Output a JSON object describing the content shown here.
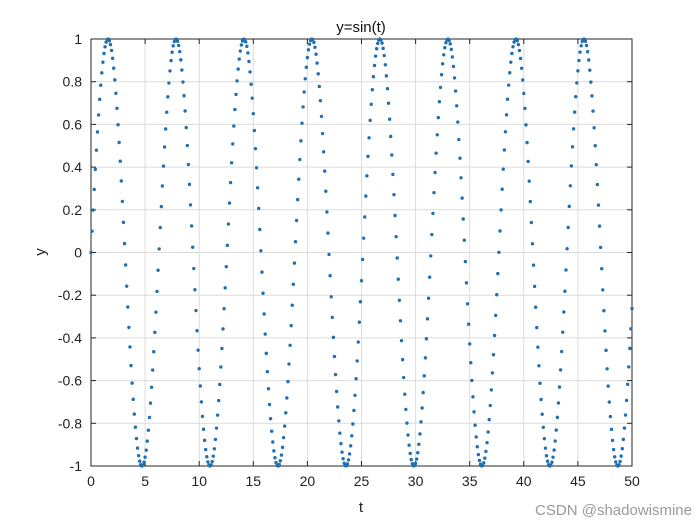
{
  "chart_data": {
    "type": "scatter",
    "title": "y=sin(t)",
    "xlabel": "t",
    "ylabel": "y",
    "xlim": [
      0,
      50
    ],
    "ylim": [
      -1,
      1
    ],
    "xticks": [
      0,
      5,
      10,
      15,
      20,
      25,
      30,
      35,
      40,
      45,
      50
    ],
    "yticks": [
      -1,
      -0.8,
      -0.6,
      -0.4,
      -0.2,
      0,
      0.2,
      0.4,
      0.6,
      0.8,
      1
    ],
    "xtick_labels": [
      "0",
      "5",
      "10",
      "15",
      "20",
      "25",
      "30",
      "35",
      "40",
      "45",
      "50"
    ],
    "ytick_labels": [
      "-1",
      "-0.8",
      "-0.6",
      "-0.4",
      "-0.2",
      "0",
      "0.2",
      "0.4",
      "0.6",
      "0.8",
      "1"
    ],
    "grid": true,
    "series": [
      {
        "function": "sin(t)",
        "t_start": 0,
        "t_end": 50,
        "t_step": 0.1,
        "marker": "dot",
        "color": "#1f6fb2"
      }
    ]
  },
  "watermark": "CSDN @shadowismine"
}
